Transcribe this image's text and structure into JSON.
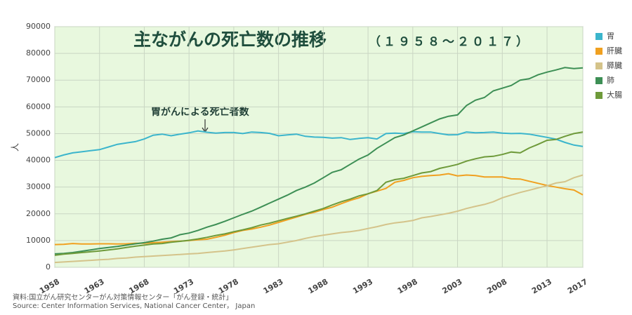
{
  "chart_data": {
    "type": "line",
    "title": "主ながんの死亡数の推移",
    "subtitle": "（１９５８～２０１７）",
    "ylabel": "人",
    "annotation": "胃がんによる死亡者数",
    "source": [
      "資料:国立がん研究センターがん対策情報センター「がん登録・統計」",
      "Source: Center Information Services, National Cancer Center， Japan"
    ],
    "x": [
      1958,
      1959,
      1960,
      1961,
      1962,
      1963,
      1964,
      1965,
      1966,
      1967,
      1968,
      1969,
      1970,
      1971,
      1972,
      1973,
      1974,
      1975,
      1976,
      1977,
      1978,
      1979,
      1980,
      1981,
      1982,
      1983,
      1984,
      1985,
      1986,
      1987,
      1988,
      1989,
      1990,
      1991,
      1992,
      1993,
      1994,
      1995,
      1996,
      1997,
      1998,
      1999,
      2000,
      2001,
      2002,
      2003,
      2004,
      2005,
      2006,
      2007,
      2008,
      2009,
      2010,
      2011,
      2012,
      2013,
      2014,
      2015,
      2016,
      2017
    ],
    "xlim": [
      1958,
      2017
    ],
    "xticks": [
      1958,
      1963,
      1968,
      1973,
      1978,
      1983,
      1988,
      1993,
      1998,
      2003,
      2008,
      2013,
      2017
    ],
    "ylim": [
      0,
      90000
    ],
    "yticks": [
      0,
      10000,
      20000,
      30000,
      40000,
      50000,
      60000,
      70000,
      80000,
      90000
    ],
    "grid": true,
    "legend": "right",
    "series": [
      {
        "name": "胃",
        "color": "#3bb5cc",
        "values": [
          41000,
          42000,
          42800,
          43200,
          43600,
          44000,
          45000,
          46000,
          46500,
          47000,
          48000,
          49400,
          49800,
          49200,
          49800,
          50300,
          51000,
          50500,
          50200,
          50400,
          50400,
          50000,
          50600,
          50400,
          50100,
          49200,
          49500,
          49800,
          49000,
          48700,
          48600,
          48300,
          48500,
          47800,
          48200,
          48500,
          48000,
          50000,
          50200,
          50000,
          50700,
          50600,
          50600,
          50000,
          49500,
          49600,
          50600,
          50300,
          50400,
          50600,
          50200,
          50000,
          50100,
          49800,
          49200,
          48600,
          47900,
          46700,
          45700,
          45200
        ]
      },
      {
        "name": "肝臓",
        "color": "#f0a020",
        "values": [
          8500,
          8600,
          8900,
          8700,
          8700,
          8800,
          8800,
          8700,
          8800,
          9000,
          9000,
          9200,
          9400,
          9600,
          9800,
          10000,
          10300,
          10500,
          11200,
          12000,
          13000,
          13800,
          14300,
          15000,
          15800,
          16800,
          17800,
          18800,
          19800,
          20600,
          21600,
          22500,
          23800,
          25000,
          26000,
          27500,
          28500,
          29500,
          31800,
          32500,
          33500,
          34000,
          34300,
          34500,
          35000,
          34200,
          34500,
          34300,
          33800,
          33800,
          33800,
          33100,
          33000,
          32200,
          31400,
          30600,
          30000,
          29400,
          28900,
          27100
        ]
      },
      {
        "name": "膵臓",
        "color": "#d4c38a",
        "values": [
          1800,
          2000,
          2200,
          2400,
          2600,
          2800,
          3000,
          3300,
          3500,
          3800,
          4000,
          4200,
          4400,
          4600,
          4800,
          5000,
          5200,
          5500,
          5800,
          6100,
          6500,
          7000,
          7500,
          8000,
          8500,
          8800,
          9400,
          10000,
          10800,
          11500,
          12000,
          12500,
          13000,
          13300,
          13800,
          14500,
          15200,
          16000,
          16600,
          17000,
          17500,
          18500,
          19000,
          19600,
          20200,
          21000,
          22000,
          22800,
          23500,
          24500,
          26000,
          27000,
          28000,
          28800,
          29700,
          30500,
          31500,
          32000,
          33500,
          34500
        ]
      },
      {
        "name": "肺",
        "color": "#3d8f55",
        "values": [
          5000,
          5200,
          5500,
          6000,
          6500,
          7000,
          7400,
          7800,
          8300,
          8800,
          9200,
          9800,
          10500,
          11000,
          12200,
          12800,
          13800,
          15000,
          16000,
          17200,
          18500,
          19800,
          21000,
          22500,
          24000,
          25500,
          27000,
          28700,
          30000,
          31500,
          33500,
          35500,
          36500,
          38500,
          40500,
          42000,
          44500,
          46500,
          48500,
          49500,
          51000,
          52500,
          54000,
          55500,
          56500,
          57000,
          60500,
          62500,
          63500,
          66000,
          67000,
          68000,
          70000,
          70500,
          72000,
          73000,
          73800,
          74700,
          74300,
          74600
        ]
      },
      {
        "name": "大腸",
        "color": "#6e9a3a",
        "values": [
          4500,
          4900,
          5200,
          5500,
          5800,
          6100,
          6500,
          6900,
          7400,
          7900,
          8300,
          8700,
          8900,
          9400,
          9700,
          10100,
          10600,
          11200,
          11900,
          12500,
          13300,
          14000,
          14800,
          15800,
          16500,
          17400,
          18300,
          19100,
          20000,
          21000,
          22000,
          23300,
          24500,
          25500,
          26700,
          27500,
          28700,
          31800,
          32800,
          33300,
          34300,
          35300,
          35800,
          37000,
          37700,
          38500,
          39700,
          40600,
          41300,
          41500,
          42200,
          43100,
          42800,
          44600,
          46000,
          47500,
          47800,
          49000,
          50000,
          50600
        ]
      }
    ]
  }
}
